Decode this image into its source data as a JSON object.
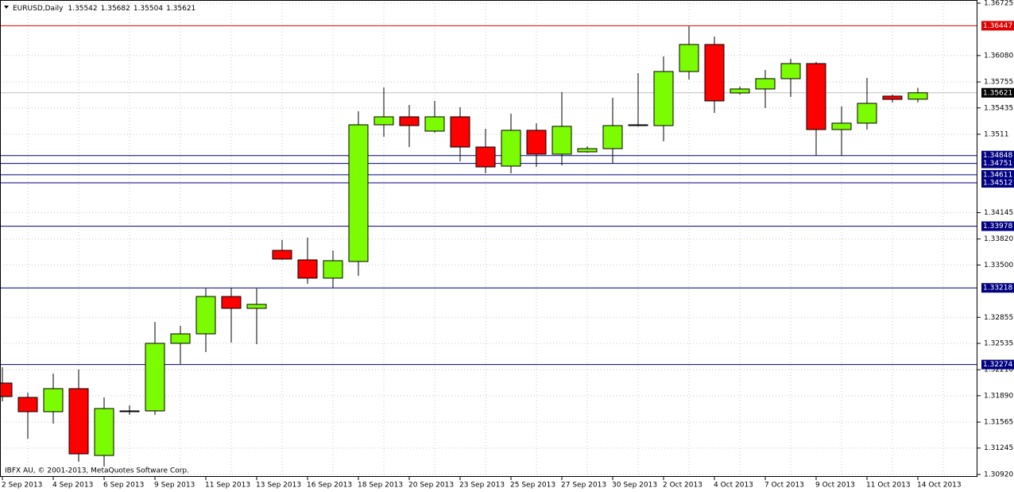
{
  "chart_data": {
    "type": "candlestick",
    "symbol": "EURUSD,Daily",
    "header_values": [
      1.35542,
      1.35682,
      1.35504,
      1.35621
    ],
    "copyright": "IBFX AU, © 2001-2013, MetaQuotes Software Corp.",
    "categories": [
      "2 Sep 2013",
      null,
      "4 Sep 2013",
      null,
      "6 Sep 2013",
      null,
      "9 Sep 2013",
      null,
      "11 Sep 2013",
      null,
      "13 Sep 2013",
      null,
      "16 Sep 2013",
      null,
      "18 Sep 2013",
      null,
      "20 Sep 2013",
      null,
      "23 Sep 2013",
      null,
      "25 Sep 2013",
      null,
      "27 Sep 2013",
      null,
      "30 Sep 2013",
      null,
      "2 Oct 2013",
      null,
      "4 Oct 2013",
      null,
      "7 Oct 2013",
      null,
      "9 Oct 2013",
      null,
      "11 Oct 2013",
      null,
      "14 Oct 2013"
    ],
    "open": [
      1.32046,
      1.31869,
      1.31693,
      1.31977,
      1.31154,
      1.31693,
      1.31703,
      1.32535,
      1.32652,
      1.33112,
      1.32966,
      1.3368,
      1.33563,
      1.33338,
      1.33543,
      1.35227,
      1.35325,
      1.35149,
      1.35325,
      1.34953,
      1.34718,
      1.35159,
      1.34865,
      1.34894,
      1.34933,
      1.35217,
      1.35217,
      1.35883,
      1.36216,
      1.35619,
      1.35668,
      1.35795,
      1.35981,
      1.35168,
      1.35247,
      1.3558,
      1.35542
    ],
    "high": [
      1.32241,
      1.31928,
      1.32163,
      1.32212,
      1.31869,
      1.31771,
      1.32799,
      1.3275,
      1.3321,
      1.3322,
      1.3321,
      1.33808,
      1.33837,
      1.3368,
      1.35394,
      1.35687,
      1.35472,
      1.35521,
      1.35443,
      1.35178,
      1.35364,
      1.35247,
      1.35629,
      1.34963,
      1.3556,
      1.35863,
      1.36069,
      1.36441,
      1.36314,
      1.35697,
      1.35903,
      1.3604,
      1.36001,
      1.35452,
      1.35805,
      1.35599,
      1.35682
    ],
    "low": [
      1.3182,
      1.3136,
      1.31546,
      1.31076,
      1.31017,
      1.31654,
      1.31654,
      1.3228,
      1.32427,
      1.32545,
      1.32525,
      1.33563,
      1.33269,
      1.3322,
      1.33367,
      1.3508,
      1.34953,
      1.3513,
      1.34777,
      1.3463,
      1.3463,
      1.34708,
      1.34728,
      1.34884,
      1.34747,
      1.35208,
      1.35022,
      1.35785,
      1.35374,
      1.35599,
      1.35433,
      1.3557,
      1.34845,
      1.34845,
      1.35168,
      1.35501,
      1.35504
    ],
    "close": [
      1.31879,
      1.31693,
      1.31977,
      1.31174,
      1.31732,
      1.31703,
      1.32535,
      1.32652,
      1.33112,
      1.32966,
      1.33015,
      1.33573,
      1.33338,
      1.33553,
      1.35227,
      1.35325,
      1.35217,
      1.35325,
      1.34953,
      1.34708,
      1.35159,
      1.34865,
      1.35208,
      1.34933,
      1.35217,
      1.35227,
      1.35883,
      1.36216,
      1.35521,
      1.35668,
      1.35795,
      1.35981,
      1.35168,
      1.35247,
      1.35491,
      1.3554,
      1.35621
    ],
    "up_color": "#7cfc00",
    "down_color": "#ff0000",
    "ylim": [
      1.3089,
      1.36764
    ],
    "yticks": [
      1.36725,
      {
        "value": 1.3608,
        "label": "1.36080"
      },
      1.35755,
      1.35435,
      1.3511,
      1.34145,
      {
        "value": 1.3382,
        "label": "1.33820"
      },
      {
        "value": 1.335,
        "label": "1.33500"
      },
      1.32855,
      1.32535,
      {
        "value": 1.3221,
        "label": "1.32210"
      },
      {
        "value": 1.3189,
        "label": "1.31890"
      },
      1.31565,
      1.31245,
      {
        "value": 1.3092,
        "label": "1.30920"
      }
    ],
    "grid": true,
    "price_lines": [
      {
        "value": 1.36447,
        "color": "#e00000"
      },
      {
        "value": 1.34848,
        "color": "#000080"
      },
      {
        "value": 1.34751,
        "color": "#000080"
      },
      {
        "value": 1.34611,
        "color": "#000080"
      },
      {
        "value": 1.34512,
        "color": "#000080"
      },
      {
        "value": 1.33978,
        "color": "#000080"
      },
      {
        "value": 1.33218,
        "color": "#000080"
      },
      {
        "value": 1.32274,
        "color": "#000080"
      }
    ],
    "current_price": {
      "value": 1.35621,
      "color": "#000000"
    }
  }
}
